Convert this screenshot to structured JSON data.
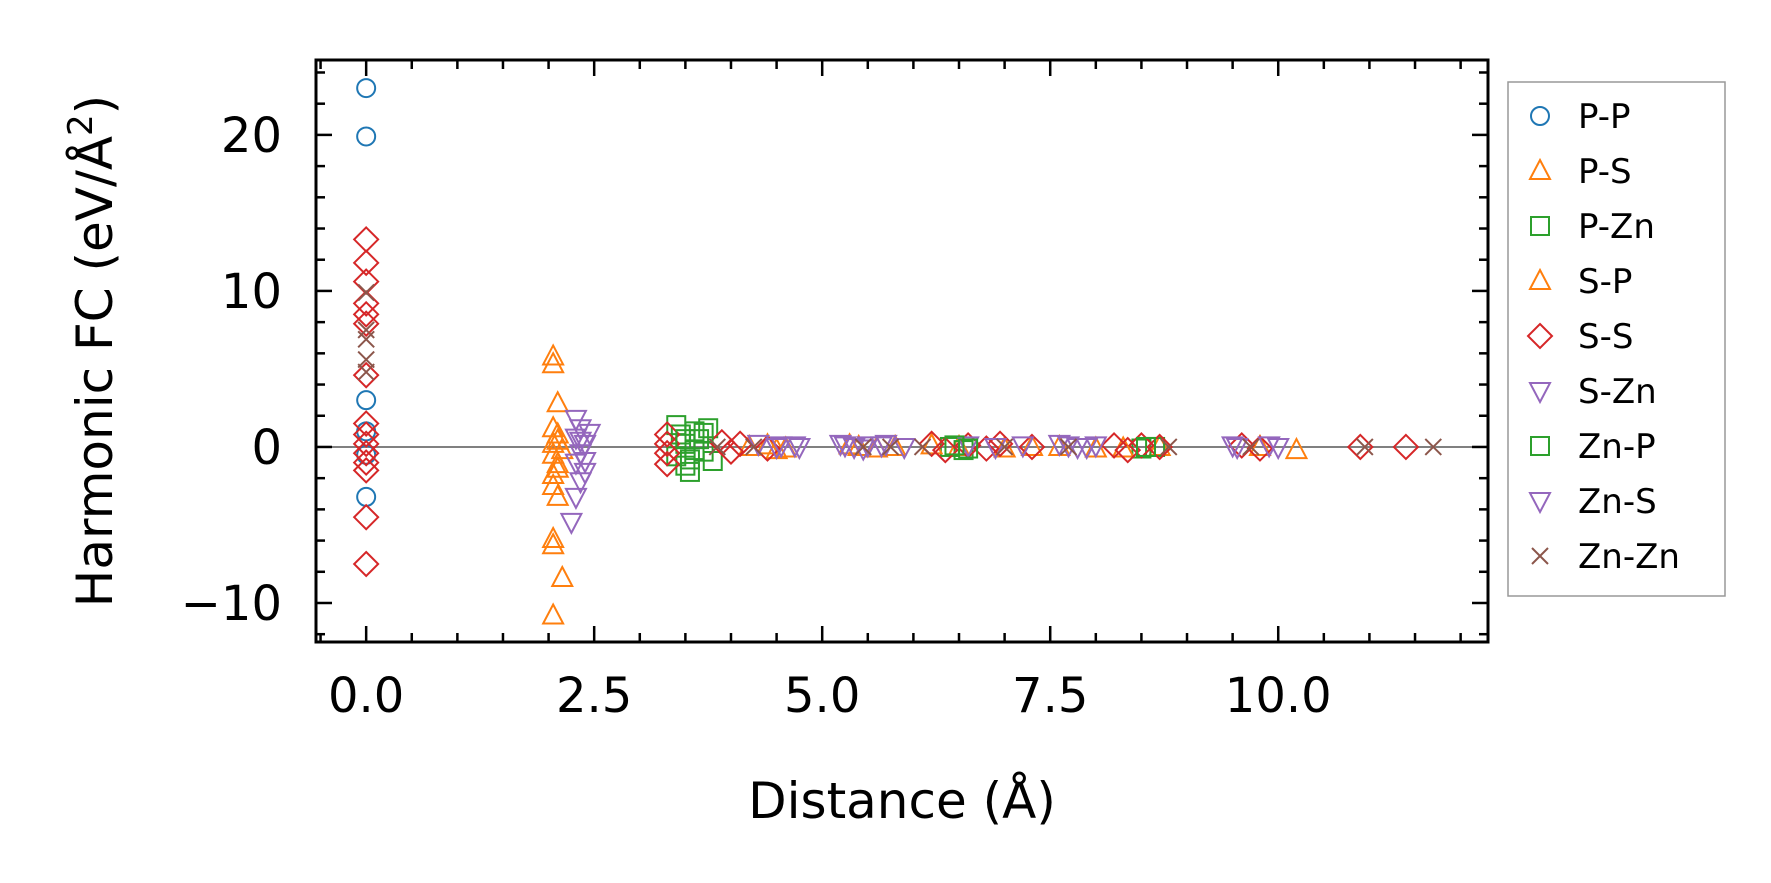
{
  "chart_data": {
    "type": "scatter",
    "title": "",
    "xlabel": "Distance (Å)",
    "ylabel_main": "Harmonic FC (eV/Å",
    "ylabel_sup": "2",
    "ylabel_close": ")",
    "xlim": [
      -0.55,
      12.3
    ],
    "ylim": [
      -12.5,
      24.8
    ],
    "xticks": [
      0.0,
      2.5,
      5.0,
      7.5,
      10.0
    ],
    "xtick_labels": [
      "0.0",
      "2.5",
      "5.0",
      "7.5",
      "10.0"
    ],
    "yticks": [
      -10,
      0,
      10,
      20
    ],
    "ytick_labels": [
      "−10",
      "0",
      "10",
      "20"
    ],
    "zero_line": 0,
    "legend_position": "outside-right",
    "series": [
      {
        "name": "P-P",
        "marker": "circle",
        "color": "#1f77b4",
        "points": [
          [
            0.0,
            23.0
          ],
          [
            0.0,
            19.9
          ],
          [
            0.0,
            3.0
          ],
          [
            0.0,
            1.0
          ],
          [
            0.0,
            -0.5
          ],
          [
            0.0,
            -3.2
          ]
        ]
      },
      {
        "name": "P-S",
        "marker": "triangle-up",
        "color": "#ff7f0e",
        "points": [
          [
            2.05,
            5.8
          ],
          [
            2.05,
            5.3
          ],
          [
            2.1,
            2.8
          ],
          [
            2.05,
            1.2
          ],
          [
            2.05,
            0.2
          ],
          [
            2.05,
            -0.5
          ],
          [
            2.05,
            -1.8
          ],
          [
            2.05,
            -2.5
          ],
          [
            2.1,
            -3.2
          ],
          [
            2.05,
            -5.9
          ],
          [
            2.05,
            -6.3
          ],
          [
            2.15,
            -8.4
          ],
          [
            2.05,
            -10.8
          ],
          [
            2.1,
            0.8
          ],
          [
            2.1,
            -1.1
          ],
          [
            4.2,
            0.0
          ],
          [
            4.5,
            -0.2
          ],
          [
            5.4,
            0.0
          ],
          [
            5.6,
            -0.1
          ],
          [
            6.5,
            0.0
          ],
          [
            7.0,
            -0.1
          ],
          [
            7.6,
            0.0
          ],
          [
            8.0,
            -0.1
          ],
          [
            8.7,
            0.0
          ],
          [
            9.8,
            0.0
          ],
          [
            10.2,
            -0.2
          ]
        ]
      },
      {
        "name": "P-Zn",
        "marker": "square",
        "color": "#2ca02c",
        "points": [
          [
            3.4,
            1.4
          ],
          [
            3.45,
            0.8
          ],
          [
            3.5,
            0.2
          ],
          [
            3.4,
            -0.6
          ],
          [
            3.5,
            -1.2
          ],
          [
            3.55,
            -1.6
          ],
          [
            3.6,
            1.0
          ],
          [
            3.65,
            0.5
          ],
          [
            3.7,
            -0.3
          ],
          [
            3.8,
            -0.9
          ],
          [
            3.75,
            1.2
          ],
          [
            6.4,
            0.0
          ],
          [
            6.55,
            -0.2
          ],
          [
            8.5,
            -0.1
          ],
          [
            8.65,
            0.0
          ]
        ]
      },
      {
        "name": "S-P",
        "marker": "triangle-up",
        "color": "#ff7f0e",
        "points": [
          [
            2.1,
            0.4
          ],
          [
            2.15,
            -0.2
          ],
          [
            2.1,
            -1.4
          ],
          [
            4.4,
            0.1
          ],
          [
            4.6,
            -0.1
          ],
          [
            5.3,
            0.1
          ],
          [
            5.8,
            0.0
          ],
          [
            6.2,
            0.1
          ],
          [
            7.3,
            0.0
          ],
          [
            8.3,
            -0.1
          ]
        ]
      },
      {
        "name": "S-S",
        "marker": "diamond",
        "color": "#d62728",
        "points": [
          [
            0.0,
            13.3
          ],
          [
            0.0,
            11.8
          ],
          [
            0.0,
            10.6
          ],
          [
            0.0,
            9.2
          ],
          [
            0.0,
            8.5
          ],
          [
            0.0,
            7.9
          ],
          [
            0.0,
            4.6
          ],
          [
            0.0,
            1.5
          ],
          [
            0.0,
            0.8
          ],
          [
            0.0,
            0.2
          ],
          [
            0.0,
            -0.4
          ],
          [
            0.0,
            -1.0
          ],
          [
            0.0,
            -1.5
          ],
          [
            0.0,
            -4.5
          ],
          [
            0.0,
            -7.5
          ],
          [
            3.3,
            0.8
          ],
          [
            3.3,
            0.2
          ],
          [
            3.3,
            -0.4
          ],
          [
            3.3,
            -1.1
          ],
          [
            3.9,
            0.3
          ],
          [
            4.0,
            -0.3
          ],
          [
            4.1,
            0.2
          ],
          [
            4.4,
            -0.1
          ],
          [
            6.2,
            0.2
          ],
          [
            6.35,
            -0.2
          ],
          [
            6.6,
            0.1
          ],
          [
            6.8,
            -0.1
          ],
          [
            6.95,
            0.2
          ],
          [
            7.3,
            0.0
          ],
          [
            8.2,
            0.1
          ],
          [
            8.35,
            -0.2
          ],
          [
            8.5,
            0.1
          ],
          [
            8.7,
            0.0
          ],
          [
            9.6,
            0.1
          ],
          [
            9.8,
            -0.1
          ],
          [
            10.9,
            0.0
          ],
          [
            11.4,
            0.0
          ]
        ]
      },
      {
        "name": "S-Zn",
        "marker": "triangle-down",
        "color": "#9467bd",
        "points": [
          [
            2.3,
            1.8
          ],
          [
            2.35,
            1.2
          ],
          [
            2.3,
            0.6
          ],
          [
            2.4,
            0.2
          ],
          [
            2.35,
            -0.4
          ],
          [
            2.3,
            -1.0
          ],
          [
            2.4,
            -1.6
          ],
          [
            2.35,
            -2.2
          ],
          [
            2.3,
            -3.2
          ],
          [
            2.25,
            -4.8
          ],
          [
            4.3,
            0.2
          ],
          [
            4.5,
            0.0
          ],
          [
            4.7,
            0.1
          ],
          [
            5.2,
            0.2
          ],
          [
            5.35,
            0.0
          ],
          [
            5.5,
            0.1
          ],
          [
            5.7,
            0.2
          ],
          [
            5.9,
            0.0
          ],
          [
            6.6,
            0.1
          ],
          [
            6.9,
            0.0
          ],
          [
            7.2,
            0.1
          ],
          [
            7.6,
            0.2
          ],
          [
            7.8,
            0.0
          ],
          [
            8.0,
            0.1
          ],
          [
            9.5,
            0.1
          ],
          [
            10.0,
            0.0
          ]
        ]
      },
      {
        "name": "Zn-P",
        "marker": "square",
        "color": "#2ca02c",
        "points": [
          [
            3.5,
            0.5
          ],
          [
            3.6,
            -0.2
          ],
          [
            3.7,
            0.9
          ],
          [
            3.55,
            -0.8
          ],
          [
            6.45,
            0.1
          ],
          [
            6.6,
            -0.1
          ],
          [
            8.55,
            0.0
          ]
        ]
      },
      {
        "name": "Zn-S",
        "marker": "triangle-down",
        "color": "#9467bd",
        "points": [
          [
            2.35,
            0.4
          ],
          [
            2.4,
            -0.9
          ],
          [
            2.45,
            0.9
          ],
          [
            4.55,
            0.1
          ],
          [
            4.75,
            0.0
          ],
          [
            5.25,
            0.1
          ],
          [
            5.45,
            -0.1
          ],
          [
            5.65,
            0.1
          ],
          [
            7.7,
            0.1
          ],
          [
            7.9,
            0.0
          ],
          [
            9.55,
            0.0
          ],
          [
            9.9,
            0.1
          ]
        ]
      },
      {
        "name": "Zn-Zn",
        "marker": "x",
        "color": "#8c564b",
        "points": [
          [
            0.0,
            9.9
          ],
          [
            0.0,
            7.5
          ],
          [
            0.0,
            6.9
          ],
          [
            0.0,
            5.6
          ],
          [
            0.0,
            4.8
          ],
          [
            3.85,
            0.0
          ],
          [
            4.25,
            0.0
          ],
          [
            5.45,
            0.0
          ],
          [
            5.75,
            0.0
          ],
          [
            6.1,
            0.0
          ],
          [
            7.0,
            0.0
          ],
          [
            7.7,
            0.0
          ],
          [
            8.8,
            0.0
          ],
          [
            9.7,
            0.0
          ],
          [
            10.95,
            0.0
          ],
          [
            11.7,
            0.0
          ]
        ]
      }
    ]
  }
}
